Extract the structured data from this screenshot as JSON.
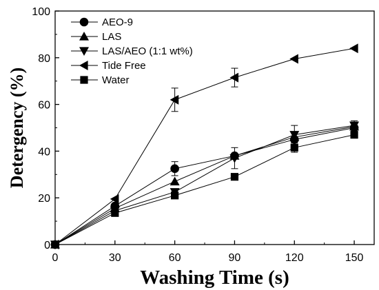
{
  "chart_data": {
    "type": "line",
    "title": "",
    "xlabel": "Washing Time (s)",
    "ylabel": "Detergency (%)",
    "xlim": [
      0,
      160
    ],
    "ylim": [
      0,
      100
    ],
    "xticks": [
      0,
      30,
      60,
      90,
      120,
      150
    ],
    "yticks": [
      0,
      20,
      40,
      60,
      80,
      100
    ],
    "legend_position": "top-left",
    "series": [
      {
        "name": "AEO-9",
        "marker": "circle",
        "x": [
          0,
          30,
          60,
          90,
          120,
          150
        ],
        "y": [
          0,
          16.5,
          32.5,
          38,
          45,
          50
        ],
        "err": [
          0,
          0,
          3,
          0,
          0,
          0
        ]
      },
      {
        "name": "LAS",
        "marker": "triangle-up",
        "x": [
          0,
          30,
          60,
          90,
          120,
          150
        ],
        "y": [
          0,
          15.5,
          27,
          38,
          46,
          50.5
        ],
        "err": [
          0,
          0,
          0,
          0,
          0,
          0
        ]
      },
      {
        "name": "LAS/AEO (1:1 wt%)",
        "marker": "triangle-down",
        "x": [
          0,
          30,
          60,
          90,
          120,
          150
        ],
        "y": [
          0,
          14.5,
          22.5,
          37,
          47,
          51
        ],
        "err": [
          0,
          0,
          0,
          4.5,
          4,
          2
        ]
      },
      {
        "name": "Tide Free",
        "marker": "triangle-left",
        "x": [
          0,
          30,
          60,
          90,
          120,
          150
        ],
        "y": [
          0,
          19.5,
          62,
          71.5,
          79.5,
          84
        ],
        "err": [
          0,
          0,
          5,
          4,
          0,
          0
        ]
      },
      {
        "name": "Water",
        "marker": "square",
        "x": [
          0,
          30,
          60,
          90,
          120,
          150
        ],
        "y": [
          0,
          13.5,
          21,
          29,
          41.5,
          47
        ],
        "err": [
          0,
          0,
          0,
          0,
          2,
          0
        ]
      }
    ]
  }
}
